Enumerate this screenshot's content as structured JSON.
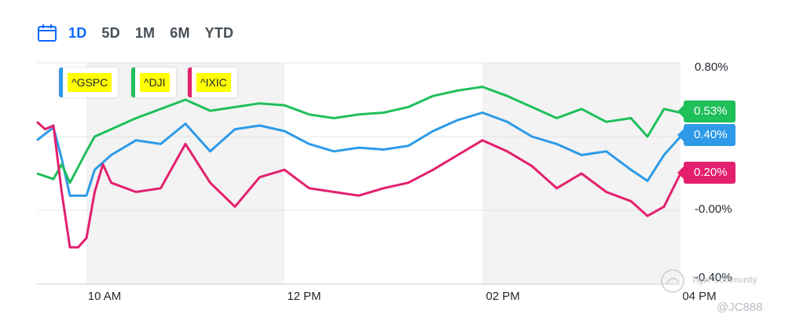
{
  "toolbar": {
    "icon": "calendar-icon",
    "ranges": [
      "1D",
      "5D",
      "1M",
      "6M",
      "YTD"
    ],
    "active_range": "1D"
  },
  "watermark": {
    "text": "Tiger Community",
    "user": "@JC888"
  },
  "colors": {
    "gspc": "#2e9ae8",
    "dji": "#1fbf5a",
    "ixic": "#e3206e",
    "shade": "#f3f3f3",
    "grid": "#e6e6e6",
    "highlight": "#ffff00"
  },
  "chart_data": {
    "type": "line",
    "x_ticks": [
      "10 AM",
      "12 PM",
      "02 PM",
      "04 PM"
    ],
    "y_ticks": [
      "0.80%",
      "0.40%",
      "-0.00%",
      "-0.40%"
    ],
    "ylim": [
      -0.4,
      0.8
    ],
    "x_range": [
      "09:30",
      "16:00"
    ],
    "legend_position": "top-left",
    "grid": true,
    "last_values": {
      "gspc": "0.40%",
      "dji": "0.53%",
      "ixic": "0.20%"
    },
    "series": [
      {
        "key": "gspc",
        "name": "^GSPC",
        "x": [
          "09:30",
          "09:40",
          "09:45",
          "09:50",
          "10:00",
          "10:05",
          "10:15",
          "10:30",
          "10:45",
          "11:00",
          "11:15",
          "11:30",
          "11:45",
          "12:00",
          "12:15",
          "12:30",
          "12:45",
          "13:00",
          "13:15",
          "13:30",
          "13:45",
          "14:00",
          "14:15",
          "14:30",
          "14:45",
          "15:00",
          "15:15",
          "15:30",
          "15:40",
          "15:50",
          "16:00"
        ],
        "values": [
          0.38,
          0.45,
          0.28,
          0.08,
          0.08,
          0.22,
          0.3,
          0.38,
          0.36,
          0.47,
          0.32,
          0.44,
          0.46,
          0.43,
          0.36,
          0.32,
          0.34,
          0.33,
          0.35,
          0.43,
          0.49,
          0.53,
          0.48,
          0.4,
          0.36,
          0.3,
          0.32,
          0.22,
          0.16,
          0.3,
          0.4
        ]
      },
      {
        "key": "dji",
        "name": "^DJI",
        "x": [
          "09:30",
          "09:40",
          "09:45",
          "09:50",
          "10:00",
          "10:05",
          "10:15",
          "10:30",
          "10:45",
          "11:00",
          "11:15",
          "11:30",
          "11:45",
          "12:00",
          "12:15",
          "12:30",
          "12:45",
          "13:00",
          "13:15",
          "13:30",
          "13:45",
          "14:00",
          "14:15",
          "14:30",
          "14:45",
          "15:00",
          "15:15",
          "15:30",
          "15:40",
          "15:50",
          "16:00"
        ],
        "values": [
          0.2,
          0.17,
          0.25,
          0.15,
          0.32,
          0.4,
          0.44,
          0.5,
          0.55,
          0.6,
          0.54,
          0.56,
          0.58,
          0.57,
          0.52,
          0.5,
          0.52,
          0.53,
          0.56,
          0.62,
          0.65,
          0.67,
          0.62,
          0.56,
          0.5,
          0.55,
          0.48,
          0.5,
          0.4,
          0.55,
          0.53
        ]
      },
      {
        "key": "ixic",
        "name": "^IXIC",
        "x": [
          "09:30",
          "09:35",
          "09:40",
          "09:45",
          "09:50",
          "09:55",
          "10:00",
          "10:05",
          "10:10",
          "10:15",
          "10:30",
          "10:45",
          "11:00",
          "11:15",
          "11:30",
          "11:45",
          "12:00",
          "12:15",
          "12:30",
          "12:45",
          "13:00",
          "13:15",
          "13:30",
          "13:45",
          "14:00",
          "14:15",
          "14:30",
          "14:45",
          "15:00",
          "15:15",
          "15:30",
          "15:40",
          "15:50",
          "16:00"
        ],
        "values": [
          0.48,
          0.44,
          0.46,
          0.1,
          -0.2,
          -0.2,
          -0.15,
          0.1,
          0.25,
          0.15,
          0.1,
          0.12,
          0.36,
          0.15,
          0.02,
          0.18,
          0.22,
          0.12,
          0.1,
          0.08,
          0.12,
          0.15,
          0.22,
          0.3,
          0.38,
          0.32,
          0.24,
          0.12,
          0.2,
          0.1,
          0.05,
          -0.03,
          0.02,
          0.2
        ]
      }
    ]
  }
}
